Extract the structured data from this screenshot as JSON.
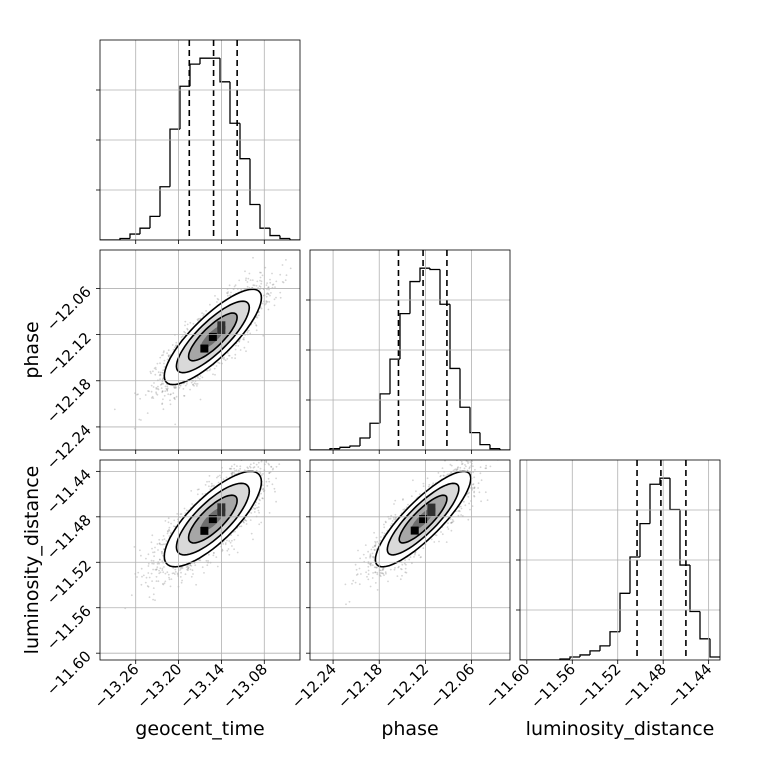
{
  "chart_data": {
    "type": "corner",
    "parameters": [
      "geocent_time",
      "phase",
      "luminosity_distance"
    ],
    "axis_labels": [
      "geocent_time",
      "phase",
      "luminosity_distance"
    ],
    "ranges": {
      "geocent_time": [
        -13.31,
        -13.03
      ],
      "phase": [
        -12.27,
        -12.01
      ],
      "luminosity_distance": [
        -11.606,
        -11.43
      ]
    },
    "ticks": {
      "geocent_time": [
        "−13.26",
        "−13.20",
        "−13.14",
        "−13.08"
      ],
      "phase": [
        "−12.24",
        "−12.18",
        "−12.12",
        "−12.06"
      ],
      "luminosity_distance": [
        "−11.60",
        "−11.56",
        "−11.52",
        "−11.48",
        "−11.44"
      ]
    },
    "tick_values": {
      "geocent_time": [
        -13.26,
        -13.2,
        -13.14,
        -13.08
      ],
      "phase": [
        -12.24,
        -12.18,
        -12.12,
        -12.06
      ],
      "luminosity_distance": [
        -11.6,
        -11.56,
        -11.52,
        -11.48,
        -11.44
      ]
    },
    "quantiles": {
      "geocent_time": [
        -13.185,
        -13.151,
        -13.118
      ],
      "phase": [
        -12.155,
        -12.123,
        -12.092
      ],
      "luminosity_distance": [
        -11.503,
        -11.482,
        -11.46
      ]
    },
    "histograms": {
      "geocent_time": {
        "edges": [
          -13.31,
          -13.296,
          -13.282,
          -13.268,
          -13.254,
          -13.24,
          -13.226,
          -13.212,
          -13.198,
          -13.184,
          -13.17,
          -13.156,
          -13.142,
          -13.128,
          -13.114,
          -13.1,
          -13.086,
          -13.072,
          -13.058,
          -13.044,
          -13.03
        ],
        "counts": [
          0,
          0,
          1,
          4,
          8,
          16,
          36,
          75,
          104,
          119,
          123,
          123,
          107,
          79,
          55,
          24,
          8,
          3,
          1,
          0
        ]
      },
      "phase": {
        "edges": [
          -12.27,
          -12.257,
          -12.244,
          -12.231,
          -12.218,
          -12.205,
          -12.192,
          -12.179,
          -12.166,
          -12.153,
          -12.14,
          -12.127,
          -12.114,
          -12.101,
          -12.088,
          -12.075,
          -12.062,
          -12.049,
          -12.036,
          -12.023,
          -12.01
        ],
        "counts": [
          0,
          0,
          1,
          2,
          3,
          9,
          20,
          42,
          68,
          102,
          126,
          136,
          135,
          109,
          61,
          32,
          13,
          4,
          1,
          0
        ]
      },
      "luminosity_distance": {
        "edges": [
          -11.606,
          -11.5972,
          -11.5884,
          -11.5796,
          -11.5708,
          -11.562,
          -11.5532,
          -11.5444,
          -11.5356,
          -11.5268,
          -11.518,
          -11.5092,
          -11.5004,
          -11.4916,
          -11.4828,
          -11.474,
          -11.4652,
          -11.4564,
          -11.4476,
          -11.4388,
          -11.43
        ],
        "counts": [
          0,
          0,
          0,
          0,
          1,
          3,
          5,
          9,
          14,
          28,
          66,
          102,
          135,
          174,
          180,
          149,
          94,
          48,
          21,
          3
        ]
      }
    },
    "joint": [
      {
        "x": "geocent_time",
        "y": "phase",
        "mean": [
          -13.152,
          -12.123
        ],
        "sd": [
          0.034,
          0.031
        ],
        "correlation": 0.82
      },
      {
        "x": "geocent_time",
        "y": "luminosity_distance",
        "mean": [
          -13.152,
          -11.482
        ],
        "sd": [
          0.034,
          0.021
        ],
        "correlation": 0.78
      },
      {
        "x": "phase",
        "y": "luminosity_distance",
        "mean": [
          -12.123,
          -11.482
        ],
        "sd": [
          0.031,
          0.021
        ],
        "correlation": 0.85
      }
    ],
    "contour_levels_sigma": [
      0.5,
      1.0,
      1.5,
      2.0
    ],
    "grid": true,
    "colors": {
      "line": "#000000",
      "grid": "#b0b0b0",
      "contour_fill_dark": "#000000",
      "contour_fill_light": "#ffffff",
      "scatter": "#888888"
    }
  }
}
